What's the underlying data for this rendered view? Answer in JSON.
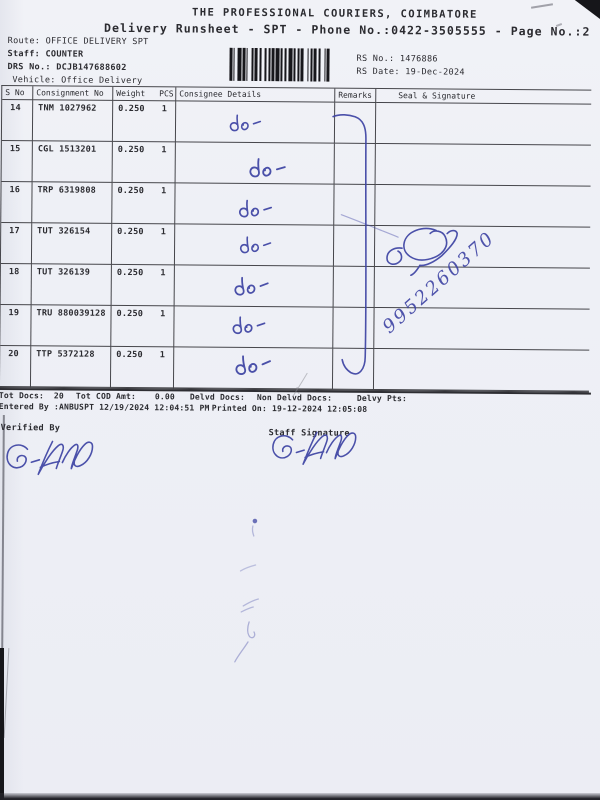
{
  "colors": {
    "ink": "#3d43a3",
    "paper": "#eef0f6",
    "print": "#2b2b30",
    "table_line": "#46464b"
  },
  "header": {
    "company": "THE PROFESSIONAL COURIERS, COIMBATORE",
    "runsheet_line": "Delivery Runsheet - SPT - Phone No.:0422-3505555 - Page No.:2",
    "route_label": "Route:",
    "route_value": "OFFICE DELIVERY SPT",
    "staff_label": "Staff:",
    "staff_value": "COUNTER",
    "drs_label": "DRS No.:",
    "drs_value": "DCJB147688602",
    "vehicle_label": "Vehicle:",
    "vehicle_value": "Office Delivery",
    "rs_no_label": "RS No.:",
    "rs_no_value": "1476886",
    "rs_date_label": "RS Date:",
    "rs_date_value": "19-Dec-2024",
    "barcode_icon": "barcode"
  },
  "table": {
    "headers": [
      "S No",
      "Consignment No",
      "Weight",
      "PCS",
      "Consignee Details",
      "Remarks",
      "Seal & Signature"
    ],
    "rows": [
      {
        "s_no": "14",
        "consignment_no": "TNM 1027962",
        "weight": "0.250",
        "pcs": "1",
        "consignee_details": "",
        "remarks": "",
        "seal_signature": ""
      },
      {
        "s_no": "15",
        "consignment_no": "CGL 1513201",
        "weight": "0.250",
        "pcs": "1",
        "consignee_details": "",
        "remarks": "",
        "seal_signature": ""
      },
      {
        "s_no": "16",
        "consignment_no": "TRP 6319808",
        "weight": "0.250",
        "pcs": "1",
        "consignee_details": "",
        "remarks": "",
        "seal_signature": ""
      },
      {
        "s_no": "17",
        "consignment_no": "TUT 326154",
        "weight": "0.250",
        "pcs": "1",
        "consignee_details": "",
        "remarks": "",
        "seal_signature": ""
      },
      {
        "s_no": "18",
        "consignment_no": "TUT 326139",
        "weight": "0.250",
        "pcs": "1",
        "consignee_details": "",
        "remarks": "",
        "seal_signature": ""
      },
      {
        "s_no": "19",
        "consignment_no": "TRU 880039128",
        "weight": "0.250",
        "pcs": "1",
        "consignee_details": "",
        "remarks": "",
        "seal_signature": ""
      },
      {
        "s_no": "20",
        "consignment_no": "TTP 5372128",
        "weight": "0.250",
        "pcs": "1",
        "consignee_details": "",
        "remarks": "",
        "seal_signature": ""
      }
    ]
  },
  "handwriting": {
    "consignee_ditto_marks": [
      "do -",
      "do -",
      "do -",
      "do -",
      "do -",
      "do -",
      "do -"
    ],
    "phone_number": "9952260370",
    "remarks_bracket": "vertical-ink-stroke",
    "remarks_signature": "ink-scribble-signature",
    "verified_by_signature": "ink-signature",
    "staff_signature": "ink-signature"
  },
  "footer": {
    "tot_docs_label": "Tot Docs:",
    "tot_docs_value": "20",
    "tot_cod_label": "Tot COD Amt:",
    "tot_cod_value": "0.00",
    "delvd_docs_label": "Delvd Docs:",
    "delvd_docs_value": "",
    "non_delvd_docs_label": "Non Delvd Docs:",
    "non_delvd_docs_value": "",
    "delvy_pts_label": "Delvy Pts:",
    "delvy_pts_value": "",
    "entered_by_label": "Entered By :",
    "entered_by_value": "ANBUSPT 12/19/2024 12:04:51 PM",
    "printed_on_label": "Printed On:",
    "printed_on_value": "19-12-2024 12:05:08",
    "verified_by_label": "Verified By",
    "staff_signature_label": "Staff Signature"
  }
}
